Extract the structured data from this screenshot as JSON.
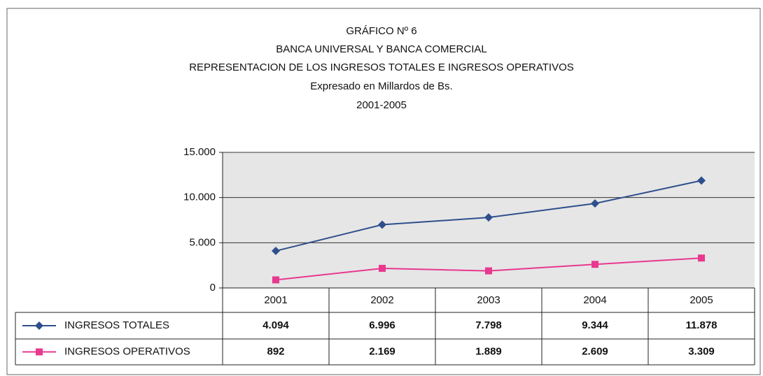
{
  "chart_data": {
    "type": "line",
    "title": "GRÁFICO Nº 6",
    "subtitle": [
      "BANCA UNIVERSAL Y BANCA COMERCIAL",
      "REPRESENTACION DE LOS INGRESOS TOTALES E INGRESOS OPERATIVOS",
      "Expresado en Millardos de Bs.",
      "2001-2005"
    ],
    "categories": [
      "2001",
      "2002",
      "2003",
      "2004",
      "2005"
    ],
    "series": [
      {
        "name": "INGRESOS TOTALES",
        "color": "#2e4f8c",
        "marker": "diamond",
        "values": [
          4094,
          6996,
          7798,
          9344,
          11878
        ],
        "value_labels": [
          "4.094",
          "6.996",
          "7.798",
          "9.344",
          "11.878"
        ]
      },
      {
        "name": "INGRESOS OPERATIVOS",
        "color": "#e8388f",
        "marker": "square",
        "values": [
          892,
          2169,
          1889,
          2609,
          3309
        ],
        "value_labels": [
          "892",
          "2.169",
          "1.889",
          "2.609",
          "3.309"
        ]
      }
    ],
    "ylim": [
      0,
      15000
    ],
    "yticks": [
      0,
      {
        "value": 5000,
        "label": "5.000"
      },
      {
        "value": 10000,
        "label": "10.000"
      },
      {
        "value": 15000,
        "label": "15.000"
      }
    ],
    "grid": true
  }
}
